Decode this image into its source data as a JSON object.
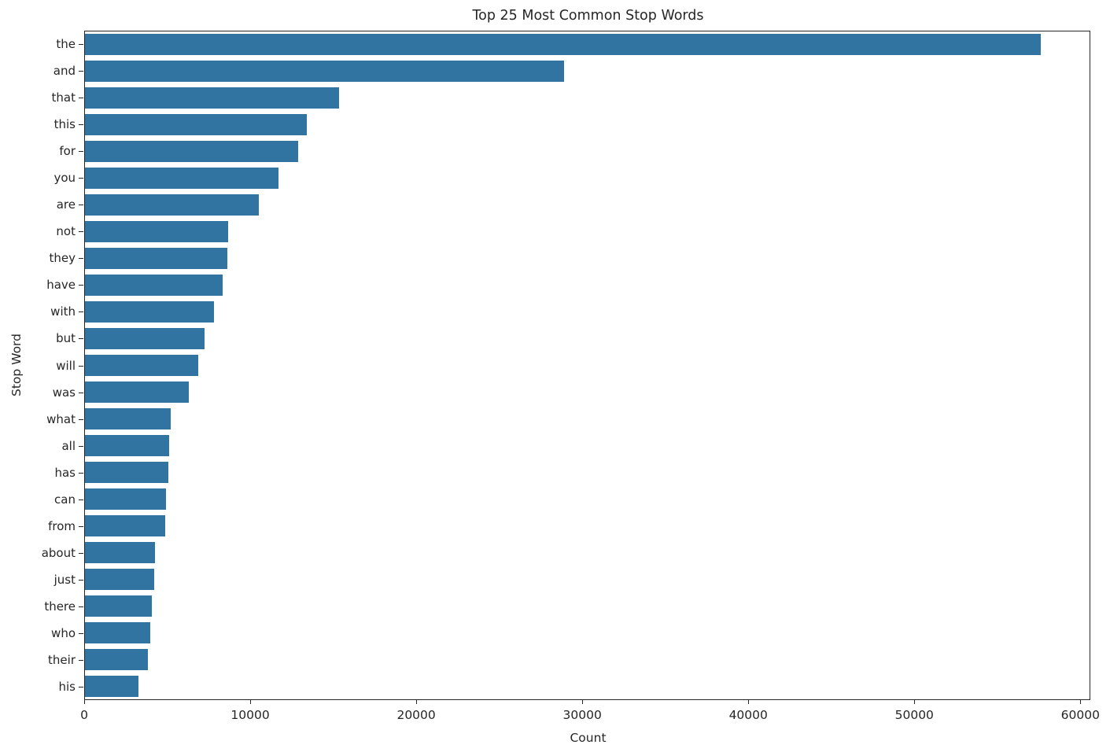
{
  "chart_data": {
    "type": "bar",
    "orientation": "horizontal",
    "title": "Top 25 Most Common Stop Words",
    "xlabel": "Count",
    "ylabel": "Stop Word",
    "categories": [
      "the",
      "and",
      "that",
      "this",
      "for",
      "you",
      "are",
      "not",
      "they",
      "have",
      "with",
      "but",
      "will",
      "was",
      "what",
      "all",
      "has",
      "can",
      "from",
      "about",
      "just",
      "there",
      "who",
      "their",
      "his"
    ],
    "values": [
      57600,
      28900,
      15350,
      13400,
      12900,
      11700,
      10500,
      8650,
      8600,
      8350,
      7800,
      7250,
      6850,
      6300,
      5200,
      5100,
      5050,
      4950,
      4900,
      4280,
      4200,
      4080,
      4000,
      3850,
      3280
    ],
    "xlim": [
      0,
      60600
    ],
    "xticks": [
      0,
      10000,
      20000,
      30000,
      40000,
      50000,
      60000
    ],
    "grid": false,
    "legend_position": "none",
    "bar_color": "#3274a1",
    "text_color": "#262626",
    "spine_color": "#262626",
    "background_color": "#ffffff"
  }
}
